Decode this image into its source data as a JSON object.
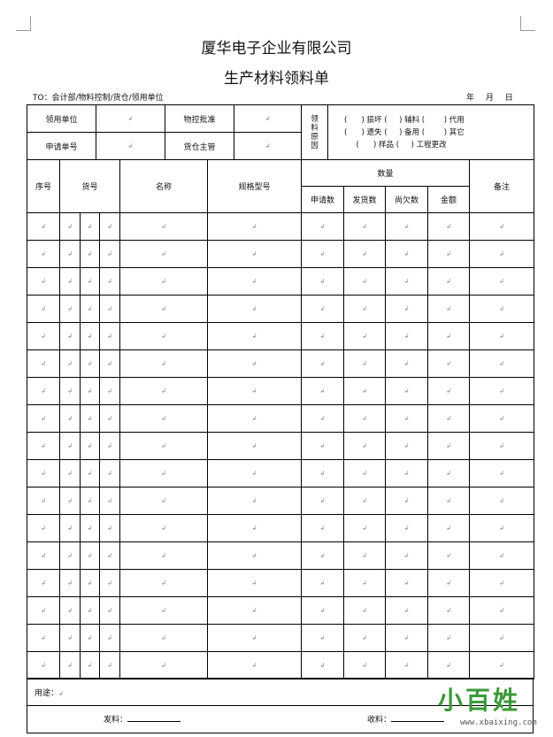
{
  "header": {
    "company": "厦华电子企业有限公司",
    "form_title": "生产材料领料单",
    "to_line": "TO：会计部/物料控制/货仓/领用单位",
    "date": "年 月 日"
  },
  "info": {
    "unit_label": "领用单位",
    "approve_label": "物控批准",
    "request_no_label": "申请单号",
    "warehouse_label": "货仓主管",
    "reason_label": "领料原因",
    "reason_line1": "(      ) 损坏 (     ) 辅料 (        ) 代用",
    "reason_line2": "(      ) 遗失 (     ) 备用 (        ) 其它",
    "reason_line3": "     (      ) 样品 (     ) 工程更改"
  },
  "columns": {
    "seq": "序号",
    "item_no": "货号",
    "name": "名称",
    "spec": "规格型号",
    "quantity": "数量",
    "requested": "申请数",
    "issued": "发货数",
    "owed": "尚欠数",
    "amount": "金额",
    "remarks": "备注"
  },
  "cell_mark": "↲",
  "row_count": 17,
  "footer": {
    "purpose_label": "用途：",
    "issuer_label": "发料：",
    "receiver_label": "收料："
  },
  "watermark": {
    "logo_text": "小百姓",
    "url": "www.xbaixing.com"
  }
}
